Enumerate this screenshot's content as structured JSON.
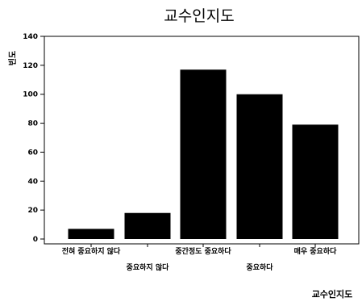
{
  "chart_data": {
    "type": "bar",
    "title": "교수인지도",
    "xlabel": "교수인지도",
    "ylabel": "빈도",
    "ylim": [
      0,
      140
    ],
    "yticks": [
      0,
      20,
      40,
      60,
      80,
      100,
      120,
      140
    ],
    "categories": [
      "전혀 중요하지 않다",
      "중요하지 않다",
      "중간정도 중요하다",
      "중요하다",
      "매우 중요하다"
    ],
    "values": [
      7,
      18,
      117,
      100,
      79
    ],
    "bar_color": "#000000",
    "grid": false
  }
}
